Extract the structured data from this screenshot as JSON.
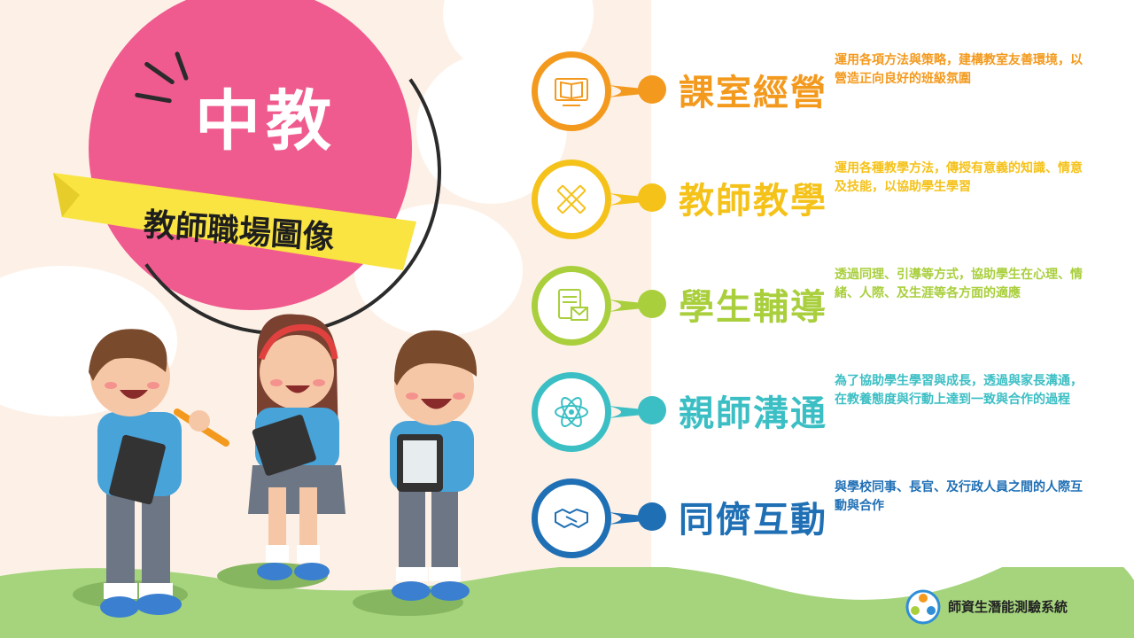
{
  "title": "中教",
  "subtitle": "教師職場圖像",
  "items": [
    {
      "label": "課室經營",
      "desc": "運用各項方法與策略，建構教室友善環境，以營造正向良好的班級氛圍",
      "icon": "book-monitor-icon",
      "color": "#f39a1e"
    },
    {
      "label": "教師教學",
      "desc": "運用各種教學方法，傳授有意義的知識、情意及技能，以協助學生學習",
      "icon": "pencil-ruler-icon",
      "color": "#f5c21a"
    },
    {
      "label": "學生輔導",
      "desc": "透過同理、引導等方式，協助學生在心理、情緒、人際、及生涯等各方面的適應",
      "icon": "document-mail-icon",
      "color": "#a9cf3c"
    },
    {
      "label": "親師溝通",
      "desc": "為了協助學生學習與成長，透過與家長溝通，在教養態度與行動上達到一致與合作的過程",
      "icon": "atom-icon",
      "color": "#3bbfc4"
    },
    {
      "label": "同儕互動",
      "desc": "與學校同事、長官、及行政人員之間的人際互動與合作",
      "icon": "handshake-icon",
      "color": "#1f6fb5"
    }
  ],
  "logo_text": "師資生潛能測驗系統"
}
